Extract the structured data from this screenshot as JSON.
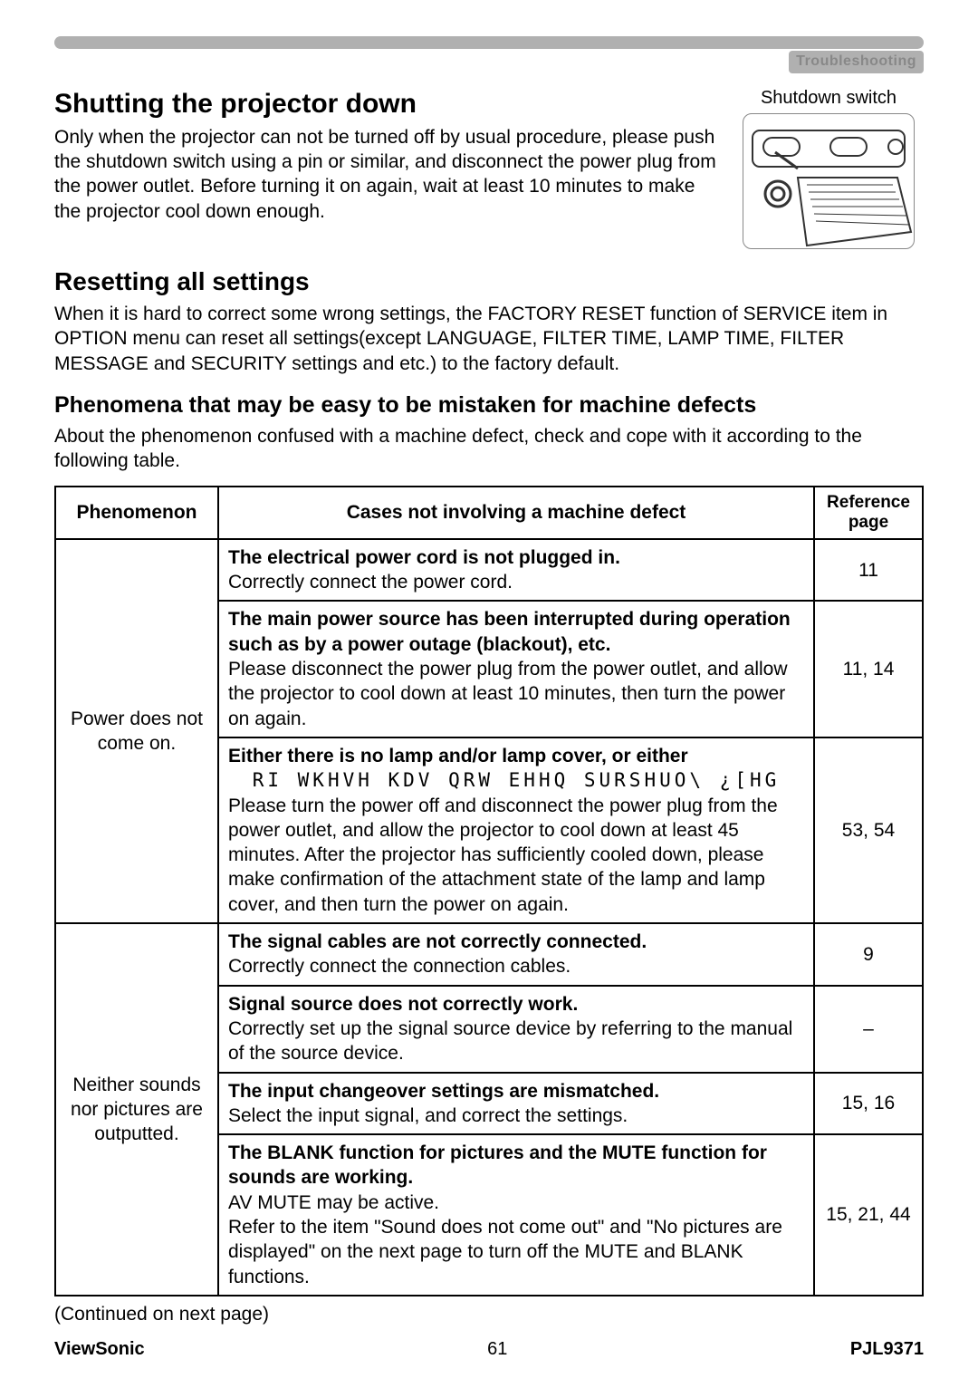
{
  "header_label": "Troubleshooting",
  "section1_title": "Shutting the projector down",
  "section1_body": "Only when the projector can not be turned off by usual procedure, please push the shutdown switch using a pin or similar, and disconnect the power plug from the power outlet. Before turning it on again, wait at least 10 minutes to make the projector cool down enough.",
  "shutdown_caption": "Shutdown switch",
  "section2_title": "Resetting all settings",
  "section2_body": "When it is hard to correct some wrong settings, the FACTORY RESET function of SERVICE item in OPTION menu can reset all settings(except LANGUAGE, FILTER TIME, LAMP TIME, FILTER MESSAGE and SECURITY settings and etc.) to the factory default.",
  "section3_title": "Phenomena that may be easy to be mistaken for machine defects",
  "section3_body": "About the phenomenon confused with a machine defect, check and cope with it according to the following table.",
  "table": {
    "columns": [
      "Phenomenon",
      "Cases not involving a machine defect",
      "Reference page"
    ],
    "groups": [
      {
        "phenomenon": "Power does not come on.",
        "cases": [
          {
            "title": "The electrical power cord is not plugged in.",
            "body": "Correctly connect the power cord.",
            "ref": "11"
          },
          {
            "title": "The main power source has been interrupted during operation such as by a power outage (blackout), etc.",
            "body": "Please disconnect the power plug from the power outlet, and allow the projector to cool down at least 10 minutes, then turn the power on again.",
            "ref": "11, 14"
          },
          {
            "title": "Either there is no lamp and/or lamp cover, or either",
            "garbled": "RI WKHVH KDV QRW EHHQ SURSHUO\\ ¿[HG",
            "body": "Please turn the power off and disconnect the power plug from the power outlet, and allow the projector to cool down at least 45 minutes. After the projector has sufficiently cooled down, please make confirmation of the attachment state of the lamp and lamp cover, and then turn the power on again.",
            "ref": "53, 54"
          }
        ]
      },
      {
        "phenomenon": "Neither sounds nor pictures are outputted.",
        "cases": [
          {
            "title": "The signal cables are not correctly connected.",
            "body": "Correctly connect the connection cables.",
            "ref": "9"
          },
          {
            "title": "Signal source does not correctly work.",
            "body": "Correctly set up the signal source device by referring to the manual of the source device.",
            "ref": "–"
          },
          {
            "title": "The input changeover settings are mismatched.",
            "body": "Select the input signal, and correct the settings.",
            "ref": "15, 16"
          },
          {
            "title": "The BLANK function for pictures and the MUTE function for sounds are working.",
            "body": "AV MUTE may be active.\nRefer to the item \"Sound does not come out\" and \"No pictures are displayed\" on the next page to turn off the MUTE and BLANK functions.",
            "ref": "15, 21, 44"
          }
        ]
      }
    ]
  },
  "continued": "(Continued on next page)",
  "footer": {
    "brand": "ViewSonic",
    "page": "61",
    "model": "PJL9371"
  },
  "colors": {
    "bar": "#b0b0b0",
    "quiet": "#888888"
  }
}
